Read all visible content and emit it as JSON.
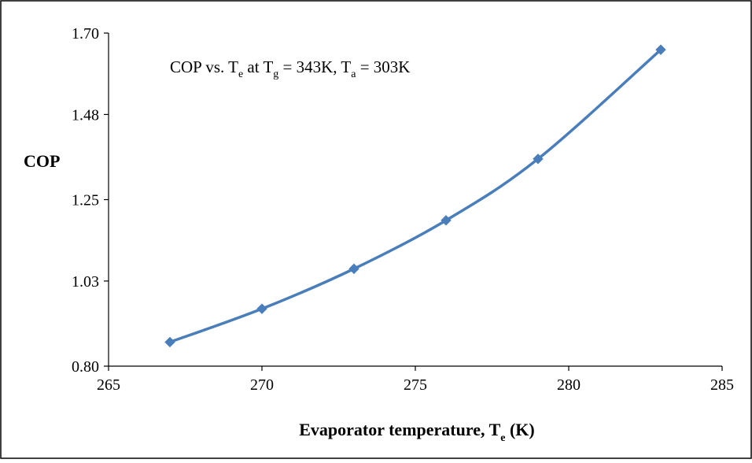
{
  "chart_data": {
    "type": "line",
    "title": "",
    "xlabel": {
      "main": "Evaporator temperature, T",
      "sub": "e",
      "tail": " (K)"
    },
    "ylabel": "COP",
    "annotation": {
      "p1": "COP  vs. T",
      "s1": "e",
      "p2": "  at T",
      "s2": "g",
      "p3": " = 343K, T",
      "s3": "a",
      "p4": " = 303K"
    },
    "xlim": [
      265,
      285
    ],
    "ylim": [
      0.8,
      1.7
    ],
    "xticks": [
      "265",
      "270",
      "275",
      "280",
      "285"
    ],
    "yticks": [
      "0.80",
      "1.03",
      "1.25",
      "1.48",
      "1.70"
    ],
    "grid": false,
    "legend": "none",
    "series": [
      {
        "color": "#4a7ebb",
        "marker": "diamond",
        "smooth": true,
        "x": [
          267,
          270,
          273,
          276,
          279,
          283
        ],
        "y": [
          0.865,
          0.955,
          1.063,
          1.194,
          1.36,
          1.655
        ]
      }
    ]
  }
}
